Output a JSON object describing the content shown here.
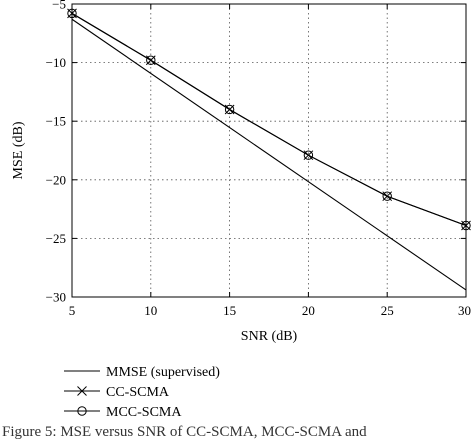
{
  "chart_data": {
    "type": "line",
    "title": "",
    "xlabel": "SNR (dB)",
    "ylabel": "MSE (dB)",
    "xlim": [
      5,
      30
    ],
    "ylim": [
      -30,
      -5
    ],
    "xticks": [
      5,
      10,
      15,
      20,
      25,
      30
    ],
    "yticks": [
      -5,
      -10,
      -15,
      -20,
      -25,
      -30
    ],
    "grid": true,
    "legend_placement": "below",
    "series": [
      {
        "name": "MMSE (supervised)",
        "marker": "none",
        "x": [
          5,
          30
        ],
        "y": [
          -6.3,
          -29.4
        ]
      },
      {
        "name": "CC-SCMA",
        "marker": "x",
        "x": [
          5,
          10,
          15,
          20,
          25,
          30
        ],
        "y": [
          -5.8,
          -9.8,
          -14.0,
          -17.9,
          -21.4,
          -23.9
        ]
      },
      {
        "name": "MCC-SCMA",
        "marker": "circle",
        "x": [
          5,
          10,
          15,
          20,
          25,
          30
        ],
        "y": [
          -5.8,
          -9.8,
          -14.0,
          -17.9,
          -21.4,
          -23.9
        ]
      }
    ]
  },
  "caption": "Figure 5: MSE versus SNR of CC-SCMA, MCC-SCMA and"
}
